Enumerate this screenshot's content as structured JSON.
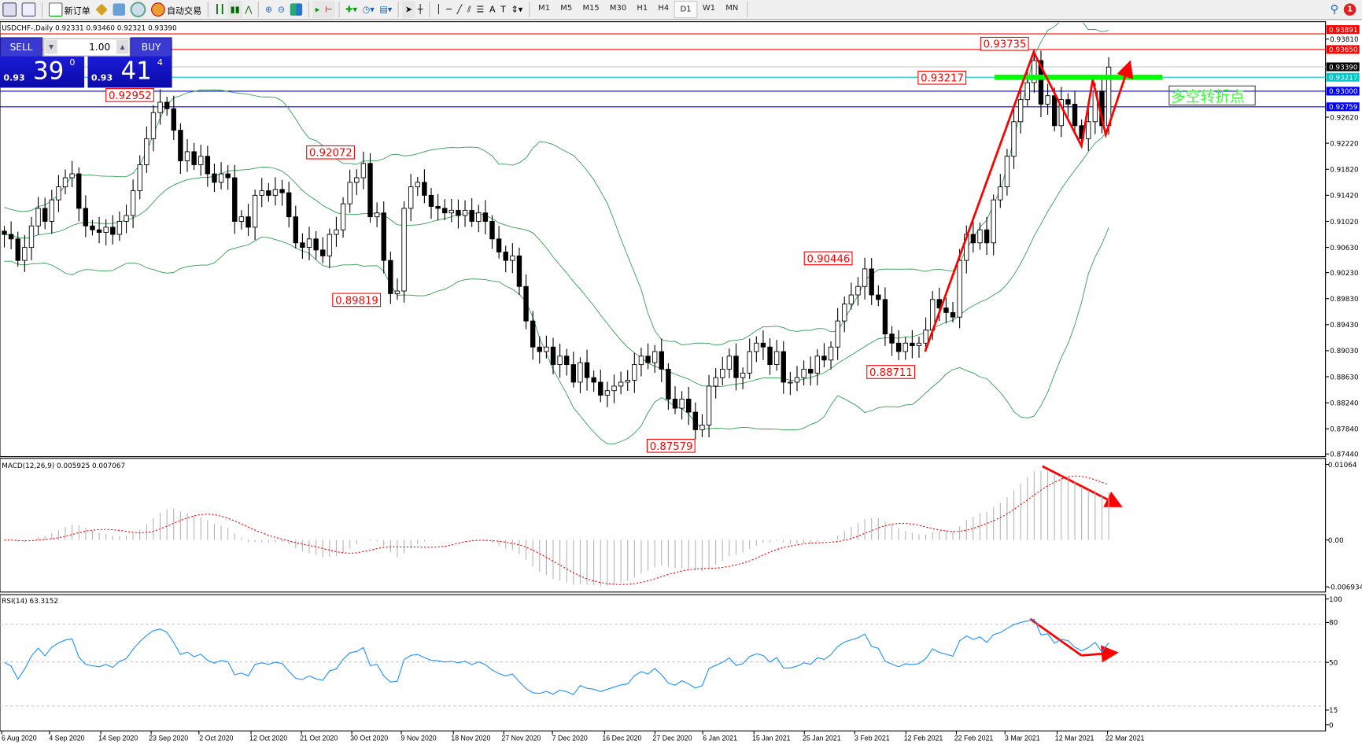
{
  "toolbar": {
    "new_order": "新订单",
    "auto_trading": "自动交易",
    "timeframes": [
      "M1",
      "M5",
      "M15",
      "M30",
      "H1",
      "H4",
      "D1",
      "W1",
      "MN"
    ],
    "active_timeframe": "D1",
    "notification_count": "1"
  },
  "chart": {
    "title": "USDCHF-,Daily  0.92331 0.93460 0.92321 0.93390",
    "one_click": {
      "sell_label": "SELL",
      "buy_label": "BUY",
      "lot": "1.00",
      "sell_price": {
        "prefix": "0.93",
        "big": "39",
        "sup": "0"
      },
      "buy_price": {
        "prefix": "0.93",
        "big": "41",
        "sup": "4"
      }
    },
    "price_ticks": [
      "0.93810",
      "0.92620",
      "0.92220",
      "0.91820",
      "0.91420",
      "0.91020",
      "0.90630",
      "0.90230",
      "0.89830",
      "0.89430",
      "0.89030",
      "0.88630",
      "0.88240",
      "0.87840",
      "0.87440"
    ],
    "level_labels": [
      {
        "value": "0.93891",
        "color": "#ff0000"
      },
      {
        "value": "0.93650",
        "color": "#ff0000"
      },
      {
        "value": "0.93390",
        "color": "#000000"
      },
      {
        "value": "0.93217",
        "color": "#00c8c8"
      },
      {
        "value": "0.93000",
        "color": "#0000ff"
      },
      {
        "value": "0.92759",
        "color": "#0000ff"
      }
    ],
    "annotations": [
      "0.92952",
      "0.92072",
      "0.89819",
      "0.90446",
      "0.88711",
      "0.87579",
      "0.93735",
      "0.93217"
    ],
    "text_box": "多空转折点",
    "closes": [
      0.9082,
      0.9075,
      0.9042,
      0.9062,
      0.9095,
      0.9122,
      0.9102,
      0.9135,
      0.9155,
      0.9169,
      0.9175,
      0.9122,
      0.9095,
      0.9089,
      0.9085,
      0.9093,
      0.9082,
      0.9102,
      0.9111,
      0.9149,
      0.9189,
      0.9229,
      0.9269,
      0.9285,
      0.9275,
      0.9242,
      0.9195,
      0.9209,
      0.9189,
      0.9202,
      0.9175,
      0.9162,
      0.9175,
      0.9169,
      0.9102,
      0.9109,
      0.9093,
      0.9142,
      0.9149,
      0.9142,
      0.9151,
      0.9146,
      0.9109,
      0.9069,
      0.9062,
      0.9075,
      0.9058,
      0.9049,
      0.9082,
      0.9089,
      0.9129,
      0.9162,
      0.9169,
      0.9191,
      0.9109,
      0.9115,
      0.9042,
      0.8991,
      0.8995,
      0.9122,
      0.9155,
      0.9162,
      0.9142,
      0.9125,
      0.9122,
      0.9115,
      0.9119,
      0.9111,
      0.9119,
      0.9102,
      0.9115,
      0.9102,
      0.9075,
      0.9055,
      0.9042,
      0.9049,
      0.9002,
      0.8949,
      0.8909,
      0.8902,
      0.8909,
      0.8882,
      0.8895,
      0.8882,
      0.8855,
      0.8885,
      0.8862,
      0.8855,
      0.8835,
      0.8842,
      0.8849,
      0.8855,
      0.8858,
      0.8882,
      0.8895,
      0.8885,
      0.8902,
      0.8875,
      0.8829,
      0.8815,
      0.8829,
      0.8809,
      0.8782,
      0.8789,
      0.8849,
      0.8862,
      0.8875,
      0.8895,
      0.8862,
      0.8869,
      0.8902,
      0.8915,
      0.8909,
      0.8882,
      0.8902,
      0.8855,
      0.8855,
      0.8862,
      0.8875,
      0.8869,
      0.8895,
      0.8889,
      0.8909,
      0.8949,
      0.8975,
      0.8989,
      0.9002,
      0.9029,
      0.8989,
      0.8982,
      0.8929,
      0.8915,
      0.8902,
      0.8915,
      0.8911,
      0.8915,
      0.8935,
      0.8982,
      0.8969,
      0.8962,
      0.8955,
      0.9042,
      0.9082,
      0.9069,
      0.9089,
      0.9069,
      0.9135,
      0.9155,
      0.9202,
      0.9255,
      0.9289,
      0.9315,
      0.9349,
      0.9282,
      0.9295,
      0.9249,
      0.9289,
      0.9282,
      0.9249,
      0.9229,
      0.9255,
      0.9302,
      0.9249,
      0.9339
    ],
    "dates": [
      "6 Aug 2020",
      "4 Sep 2020",
      "14 Sep 2020",
      "23 Sep 2020",
      "2 Oct 2020",
      "12 Oct 2020",
      "21 Oct 2020",
      "30 Oct 2020",
      "9 Nov 2020",
      "18 Nov 2020",
      "27 Nov 2020",
      "7 Dec 2020",
      "16 Dec 2020",
      "27 Dec 2020",
      "6 Jan 2021",
      "15 Jan 2021",
      "25 Jan 2021",
      "3 Feb 2021",
      "12 Feb 2021",
      "22 Feb 2021",
      "3 Mar 2021",
      "12 Mar 2021",
      "22 Mar 2021"
    ]
  },
  "macd": {
    "label": "MACD(12,26,9) 0.005925 0.007067",
    "ticks": [
      "0.01064",
      "0.00",
      "-0.006934"
    ]
  },
  "rsi": {
    "label": "RSI(14) 63.3152",
    "ticks": [
      "100",
      "80",
      "50",
      "15",
      "0"
    ]
  }
}
